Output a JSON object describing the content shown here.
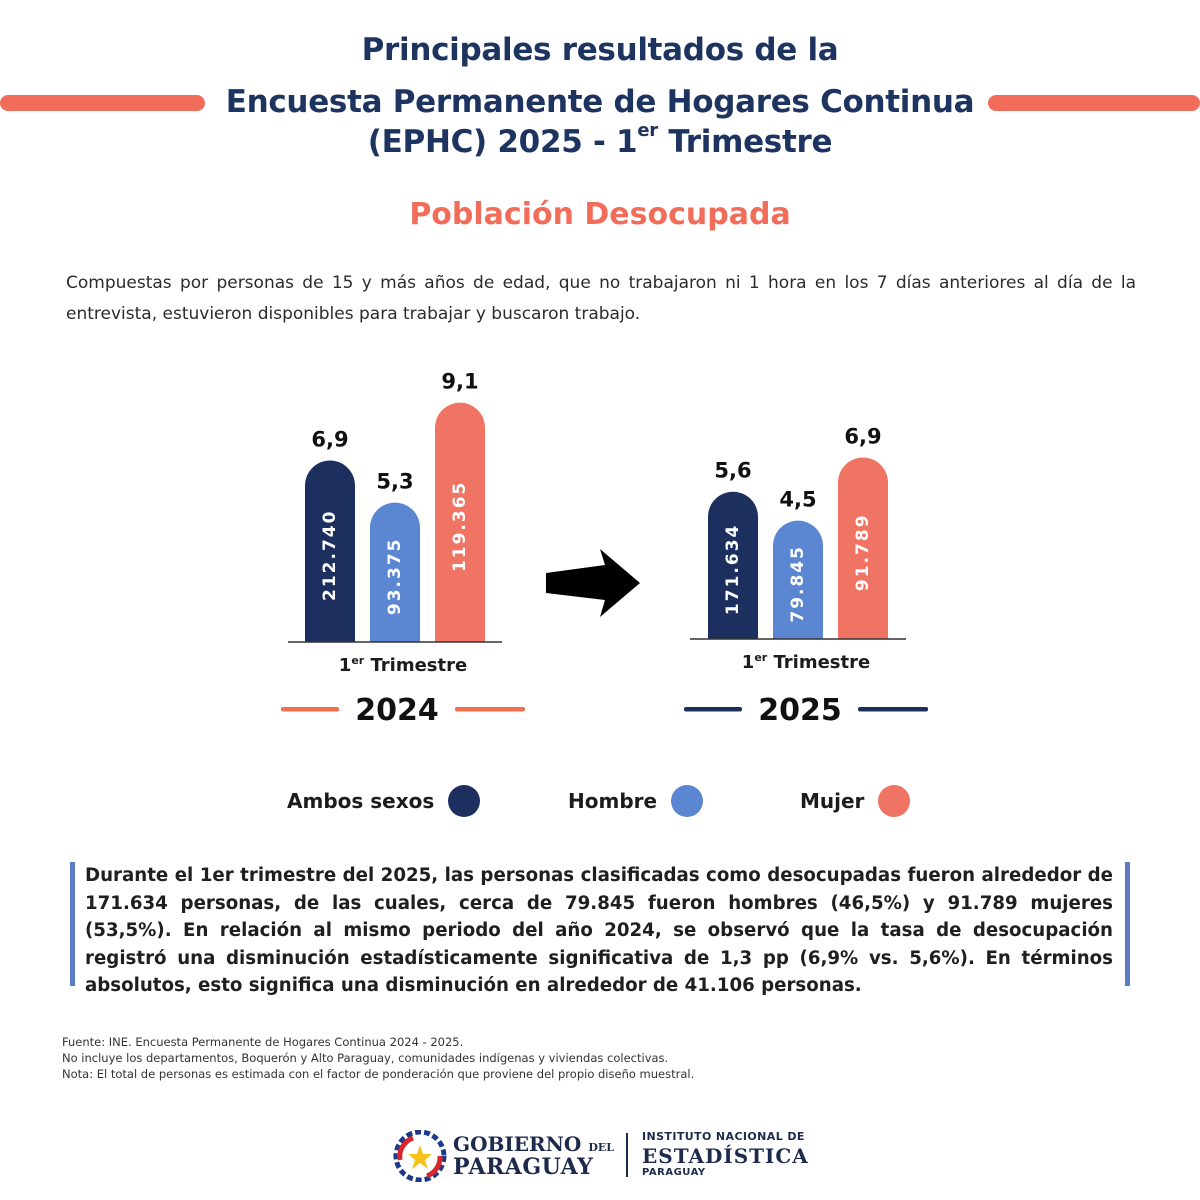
{
  "header": {
    "line1": "Principales resultados de la",
    "line2": "Encuesta Permanente de Hogares Continua",
    "line3_main": "(EPHC) 2025 - 1",
    "line3_sup": "er",
    "line3_end": " Trimestre",
    "subtitle": "Población Desocupada"
  },
  "intro": "Compuestas por personas de 15 y más años de edad, que no trabajaron ni 1 hora en los 7 días anteriores al día de la entrevista, estuvieron disponibles para trabajar y buscaron trabajo.",
  "colors": {
    "ambos": "#1c2f5e",
    "hombre": "#5b86d1",
    "mujer": "#ef7464",
    "title": "#1d3360",
    "accent": "#f16d5a"
  },
  "chart_data": [
    {
      "type": "bar",
      "period_label": "1er Trimestre",
      "year": "2024",
      "categories": [
        "Ambos sexos",
        "Hombre",
        "Mujer"
      ],
      "rates": [
        6.9,
        5.3,
        9.1
      ],
      "rate_labels": [
        "6,9",
        "5,3",
        "9,1"
      ],
      "persons": [
        212740,
        93375,
        119365
      ],
      "person_labels": [
        "212.740",
        "93.375",
        "119.365"
      ]
    },
    {
      "type": "bar",
      "period_label": "1er Trimestre",
      "year": "2025",
      "categories": [
        "Ambos sexos",
        "Hombre",
        "Mujer"
      ],
      "rates": [
        5.6,
        4.5,
        6.9
      ],
      "rate_labels": [
        "5,6",
        "4,5",
        "6,9"
      ],
      "persons": [
        171634,
        79845,
        91789
      ],
      "person_labels": [
        "171.634",
        "79.845",
        "91.789"
      ]
    }
  ],
  "legend": [
    {
      "label": "Ambos sexos",
      "color": "#1c2f5e"
    },
    {
      "label": "Hombre",
      "color": "#5b86d1"
    },
    {
      "label": "Mujer",
      "color": "#ef7464"
    }
  ],
  "summary": "Durante el 1er trimestre del 2025, las personas clasificadas como desocupadas fueron alrededor de 171.634 personas, de las cuales, cerca de 79.845 fueron hombres (46,5%) y 91.789 mujeres (53,5%). En relación al mismo periodo del año 2024, se observó que la tasa de desocupación registró una disminución estadísticamente significativa de 1,3 pp (6,9% vs. 5,6%). En términos absolutos, esto significa una disminución en alrededor de 41.106 personas.",
  "footnotes": [
    "Fuente: INE. Encuesta Permanente de Hogares Continua 2024 - 2025.",
    "No incluye los departamentos, Boquerón y Alto Paraguay, comunidades indígenas y viviendas colectivas.",
    "Nota: El total de personas es estimada con el factor de ponderación que proviene del propio diseño muestral."
  ],
  "logos": {
    "gov_line1": "GOBIERNO",
    "gov_small": "DEL",
    "gov_line2": "PARAGUAY",
    "ine_line1": "INSTITUTO NACIONAL DE",
    "ine_line2": "ESTADÍSTICA",
    "ine_line3": "PARAGUAY"
  }
}
